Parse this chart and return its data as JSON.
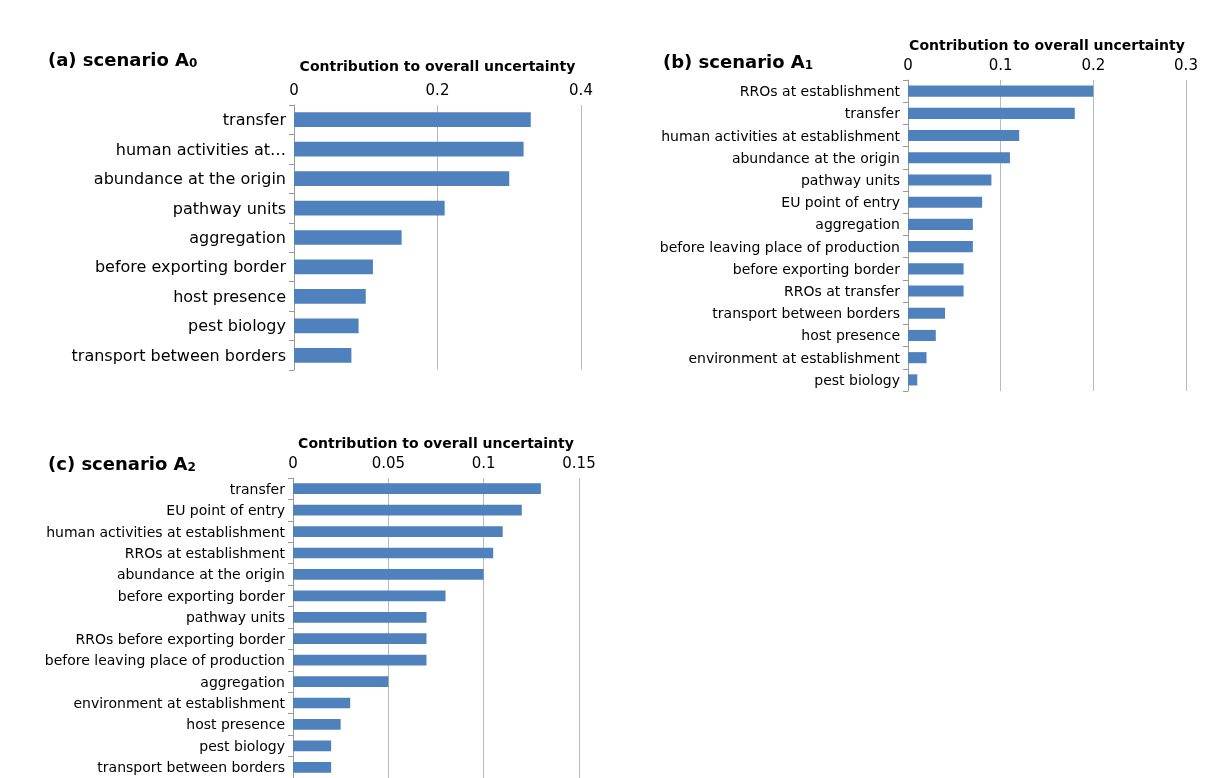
{
  "chart_data": [
    {
      "type": "bar",
      "orientation": "horizontal",
      "title": "(a) scenario A$_{0}$",
      "xlabel": "Contribution to overall uncertainty",
      "categories": [
        "transfer",
        "human activities at…",
        "abundance at the origin",
        "pathway units",
        "aggregation",
        "before exporting border",
        "host presence",
        "pest biology",
        "transport between borders"
      ],
      "values": [
        0.33,
        0.32,
        0.3,
        0.21,
        0.15,
        0.11,
        0.1,
        0.09,
        0.08
      ],
      "color": "#4f81bd",
      "xlim": [
        0,
        0.4
      ],
      "xticks": [
        0,
        0.2,
        0.4
      ],
      "grid": "x"
    },
    {
      "type": "bar",
      "orientation": "horizontal",
      "title": "(b) scenario A$_{1}$",
      "xlabel": "Contribution to overall uncertainty",
      "categories": [
        "RROs at establishment",
        "transfer",
        "human activities at establishment",
        "abundance at the origin",
        "pathway units",
        "EU point of entry",
        "aggregation",
        "before leaving place of production",
        "before exporting border",
        "RROs at transfer",
        "transport between borders",
        "host presence",
        "environment at establishment",
        "pest biology"
      ],
      "values": [
        0.2,
        0.18,
        0.12,
        0.11,
        0.09,
        0.08,
        0.07,
        0.07,
        0.06,
        0.06,
        0.04,
        0.03,
        0.02,
        0.01
      ],
      "color": "#4f81bd",
      "xlim": [
        0,
        0.3
      ],
      "xticks": [
        0,
        0.1,
        0.2,
        0.3
      ],
      "grid": "x"
    },
    {
      "type": "bar",
      "orientation": "horizontal",
      "title": "(c) scenario A$_{2}$",
      "xlabel": "Contribution to overall uncertainty",
      "categories": [
        "transfer",
        "EU point of entry",
        "human activities at establishment",
        "RROs at establishment",
        "abundance at the origin",
        "before exporting border",
        "pathway units",
        "RROs before exporting border",
        "before leaving place of production",
        "aggregation",
        "environment at establishment",
        "host presence",
        "pest biology",
        "transport between borders"
      ],
      "values": [
        0.13,
        0.12,
        0.11,
        0.105,
        0.1,
        0.08,
        0.07,
        0.07,
        0.07,
        0.05,
        0.03,
        0.025,
        0.02,
        0.02
      ],
      "color": "#4f81bd",
      "xlim": [
        0,
        0.15
      ],
      "xticks": [
        0,
        0.05,
        0.1,
        0.15
      ],
      "grid": "x"
    }
  ]
}
